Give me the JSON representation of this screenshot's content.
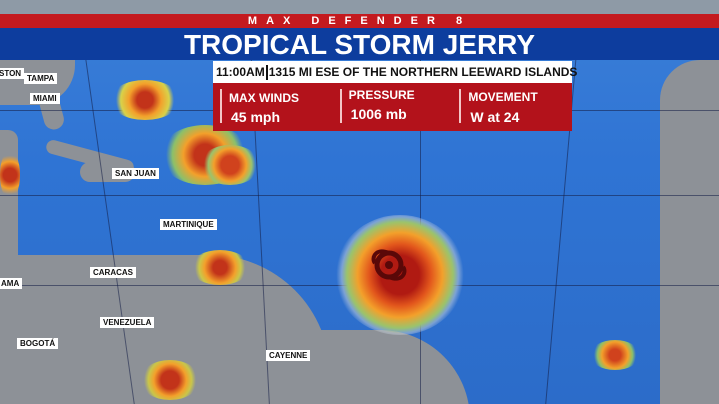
{
  "header": {
    "brand": "MAX DEFENDER 8",
    "title": "TROPICAL STORM JERRY"
  },
  "advisory": {
    "time": "11:00AM",
    "location": "1315 MI ESE OF THE NORTHERN LEEWARD ISLANDS"
  },
  "stats": [
    {
      "label": "MAX WINDS",
      "value": "45 mph"
    },
    {
      "label": "PRESSURE",
      "value": "1006 mb"
    },
    {
      "label": "MOVEMENT",
      "value": "W at 24"
    }
  ],
  "map": {
    "cities": [
      "STON",
      "TAMPA",
      "MIAMI",
      "SAN JUAN",
      "MARTINIQUE",
      "CARACAS",
      "AMA",
      "VENEZUELA",
      "BOGOTÁ",
      "CAYENNE"
    ],
    "storm_icon": "tropical-storm-icon",
    "colors": {
      "ocean": "#2f74d4",
      "land": "#8d9197",
      "brand_red": "#c41a1f",
      "title_blue": "#0d3d9e"
    }
  }
}
